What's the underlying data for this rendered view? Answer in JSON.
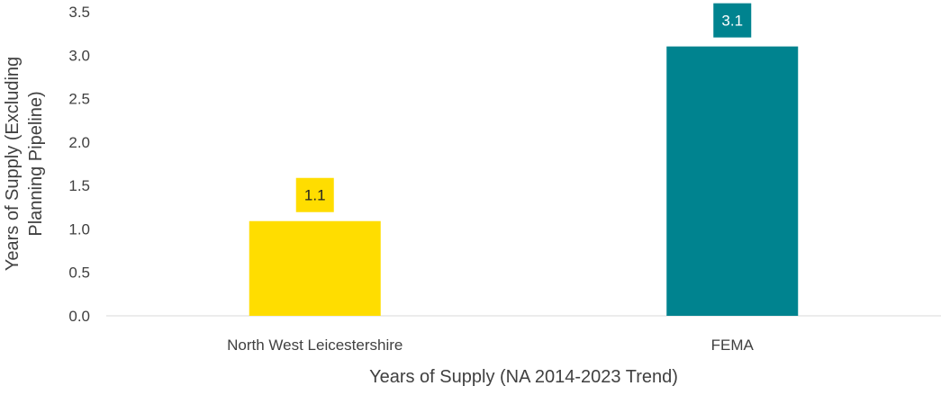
{
  "chart_data": {
    "type": "bar",
    "categories": [
      "North West Leicestershire",
      "FEMA"
    ],
    "values": [
      1.09,
      3.1
    ],
    "data_labels": [
      "1.1",
      "3.1"
    ],
    "colors": [
      "#FFDD00",
      "#00838F"
    ],
    "label_text_colors": [
      "#222222",
      "#ffffff"
    ],
    "title": "",
    "xlabel": "Years of Supply (NA 2014-2023 Trend)",
    "ylabel_lines": [
      "Years of Supply (Excluding",
      "Planning Pipeline)"
    ],
    "ylim": [
      0,
      3.5
    ],
    "yticks": [
      "0.0",
      "0.5",
      "1.0",
      "1.5",
      "2.0",
      "2.5",
      "3.0",
      "3.5"
    ],
    "grid": false,
    "legend": "none"
  }
}
